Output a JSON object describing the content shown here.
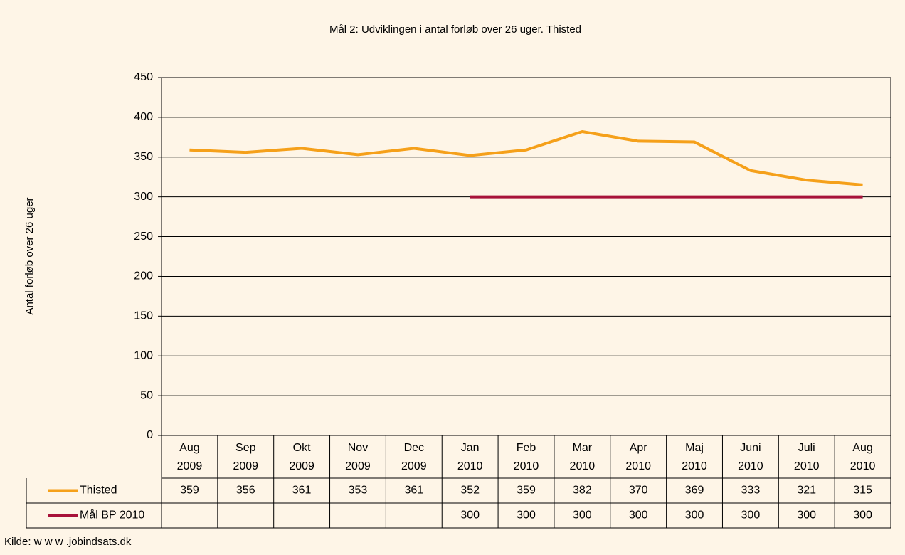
{
  "chart_data": {
    "type": "line",
    "title": "Mål 2: Udviklingen i antal forløb over 26 uger. Thisted",
    "y_label": "Antal forløb over 26 uger",
    "source": "Kilde: w w w .jobindsats.dk",
    "categories": [
      "Aug 2009",
      "Sep 2009",
      "Okt 2009",
      "Nov 2009",
      "Dec 2009",
      "Jan 2010",
      "Feb 2010",
      "Mar 2010",
      "Apr 2010",
      "Maj 2010",
      "Juni 2010",
      "Juli 2010",
      "Aug 2010"
    ],
    "series": [
      {
        "name": "Thisted",
        "color": "#f5a01a",
        "values": [
          359,
          356,
          361,
          353,
          361,
          352,
          359,
          382,
          370,
          369,
          333,
          321,
          315
        ]
      },
      {
        "name": "Mål BP 2010",
        "color": "#a8123a",
        "values": [
          null,
          null,
          null,
          null,
          null,
          300,
          300,
          300,
          300,
          300,
          300,
          300,
          300
        ]
      }
    ],
    "ylim": [
      0,
      450
    ],
    "yticks": [
      0,
      50,
      100,
      150,
      200,
      250,
      300,
      350,
      400,
      450
    ],
    "grid": true
  }
}
